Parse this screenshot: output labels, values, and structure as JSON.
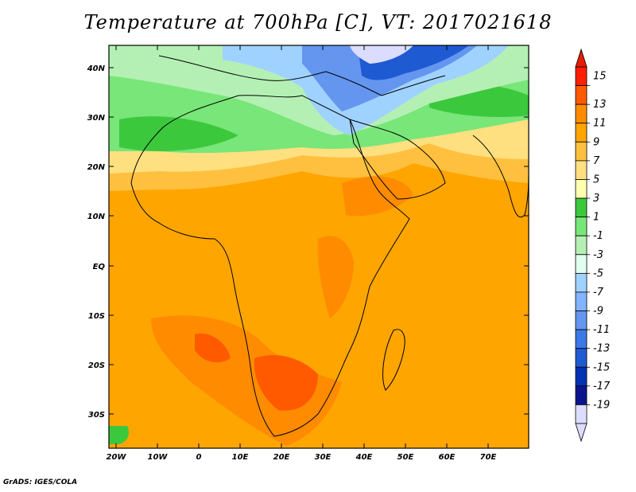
{
  "title": "Temperature at 700hPa [C], VT: 2017021618",
  "credit": "GrADS: IGES/COLA",
  "axes": {
    "lat_ticks": [
      "40N",
      "30N",
      "20N",
      "10N",
      "EQ",
      "10S",
      "20S",
      "30S"
    ],
    "lon_ticks": [
      "20W",
      "10W",
      "0",
      "10E",
      "20E",
      "30E",
      "40E",
      "50E",
      "60E",
      "70E"
    ]
  },
  "colorbar": {
    "levels": [
      "15",
      "13",
      "11",
      "9",
      "7",
      "5",
      "3",
      "1",
      "-1",
      "-3",
      "-5",
      "-7",
      "-9",
      "-11",
      "-13",
      "-15",
      "-17",
      "-19"
    ],
    "colors": [
      "#ff1e00",
      "#ff5a00",
      "#ff8c00",
      "#ffa500",
      "#ffc040",
      "#ffe080",
      "#ffffb0",
      "#3cc83c",
      "#78e678",
      "#b4f0b4",
      "#e0fff0",
      "#a0d2ff",
      "#82b4ff",
      "#6496f0",
      "#3c78e6",
      "#1e5ad2",
      "#0032b4",
      "#0a148c",
      "#dcdcff"
    ],
    "top_arrow_color": "#e61e00",
    "bottom_arrow_color": "#dcdcff"
  },
  "map": {
    "domain_lon": [
      "20W",
      "80E"
    ],
    "domain_lat": [
      "37S",
      "45N"
    ],
    "field": "Temperature at 700hPa",
    "units": "C"
  }
}
